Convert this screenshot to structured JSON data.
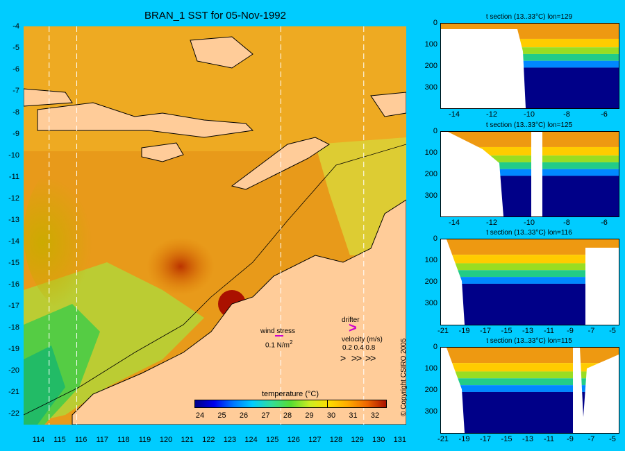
{
  "title": "BRAN_1 SST for 05-Nov-1992",
  "map": {
    "y_ticks": [
      "-4",
      "-5",
      "-6",
      "-7",
      "-8",
      "-9",
      "-10",
      "-11",
      "-12",
      "-13",
      "-14",
      "-15",
      "-16",
      "-17",
      "-18",
      "-19",
      "-20",
      "-21",
      "-22"
    ],
    "x_ticks": [
      "114",
      "115",
      "116",
      "117",
      "118",
      "119",
      "120",
      "121",
      "122",
      "123",
      "124",
      "125",
      "126",
      "127",
      "128",
      "129",
      "130",
      "131"
    ],
    "lon_range": [
      113.3,
      131.3
    ],
    "lat_range": [
      -4,
      -22.5
    ],
    "section_longitudes": [
      114.5,
      115.8,
      125.4,
      129.3
    ],
    "colors": {
      "land": "#ffcc99",
      "background": "#00ccff"
    }
  },
  "colorbar": {
    "title": "temperature (°C)",
    "ticks": [
      "24",
      "25",
      "26",
      "27",
      "28",
      "29",
      "30",
      "31",
      "32"
    ],
    "marker_value": 29.8
  },
  "legend": {
    "wind_stress_label": "wind stress",
    "wind_stress_scale": "0.1 N/m",
    "wind_stress_exp": "2",
    "drifter_label": "drifter",
    "drifter_symbol": ">",
    "velocity_label": "velocity (m/s)",
    "velocity_scale": "0.2 0.4 0.8",
    "velocity_arrows": ">   >>  >>"
  },
  "sections": [
    {
      "title": "t section (13..33°C) lon=129",
      "y_ticks": [
        "0",
        "100",
        "200",
        "300"
      ],
      "x_ticks": [
        "-14",
        "-12",
        "-10",
        "-8",
        "-6"
      ]
    },
    {
      "title": "t section (13..33°C) lon=125",
      "y_ticks": [
        "0",
        "100",
        "200",
        "300"
      ],
      "x_ticks": [
        "-14",
        "-12",
        "-10",
        "-8",
        "-6"
      ]
    },
    {
      "title": "t section (13..33°C) lon=116",
      "y_ticks": [
        "0",
        "100",
        "200",
        "300"
      ],
      "x_ticks": [
        "-21",
        "-19",
        "-17",
        "-15",
        "-13",
        "-11",
        "-9",
        "-7",
        "-5"
      ]
    },
    {
      "title": "t section (13..33°C) lon=115",
      "y_ticks": [
        "0",
        "100",
        "200",
        "300"
      ],
      "x_ticks": [
        "-21",
        "-19",
        "-17",
        "-15",
        "-13",
        "-11",
        "-9",
        "-7",
        "-5"
      ]
    }
  ],
  "copyright": "© Copyright CSIRO 2005"
}
